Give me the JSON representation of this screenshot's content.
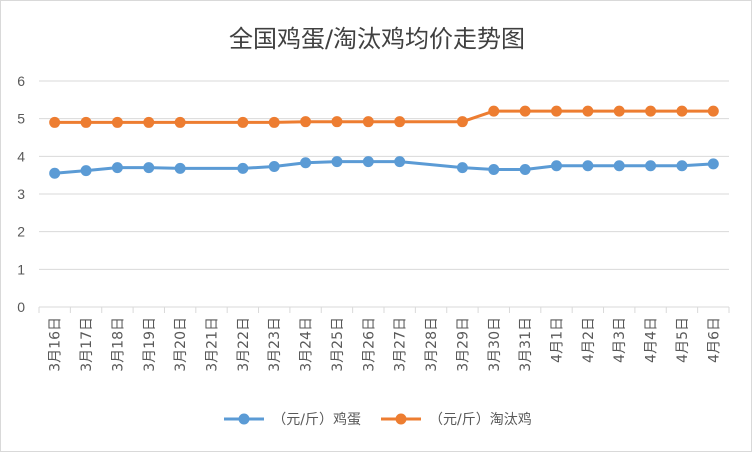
{
  "chart_data": {
    "type": "line",
    "title": "全国鸡蛋/淘汰鸡均价走势图",
    "xlabel": "",
    "ylabel": "",
    "ylim": [
      0,
      6
    ],
    "yticks": [
      "0",
      "1",
      "2",
      "3",
      "4",
      "5",
      "6"
    ],
    "grid": true,
    "legend_position": "bottom",
    "categories": [
      "3月16日",
      "3月17日",
      "3月18日",
      "3月19日",
      "3月20日",
      "3月21日",
      "3月22日",
      "3月23日",
      "3月24日",
      "3月25日",
      "3月26日",
      "3月27日",
      "3月28日",
      "3月29日",
      "3月30日",
      "3月31日",
      "4月1日",
      "4月2日",
      "4月3日",
      "4月4日",
      "4月5日",
      "4月6日"
    ],
    "series": [
      {
        "name": "（元/斤）鸡蛋",
        "color": "#5b9bd5",
        "values": [
          3.55,
          3.62,
          3.7,
          3.7,
          3.68,
          null,
          3.68,
          3.73,
          3.83,
          3.86,
          3.86,
          3.86,
          null,
          3.7,
          3.65,
          3.65,
          3.75,
          3.75,
          3.75,
          3.75,
          3.75,
          3.8
        ]
      },
      {
        "name": "（元/斤）淘汰鸡",
        "color": "#ed7d31",
        "values": [
          4.9,
          4.9,
          4.9,
          4.9,
          4.9,
          null,
          4.9,
          4.9,
          4.92,
          4.92,
          4.92,
          4.92,
          null,
          4.92,
          5.2,
          5.2,
          5.2,
          5.2,
          5.2,
          5.2,
          5.2,
          5.2
        ]
      }
    ]
  }
}
